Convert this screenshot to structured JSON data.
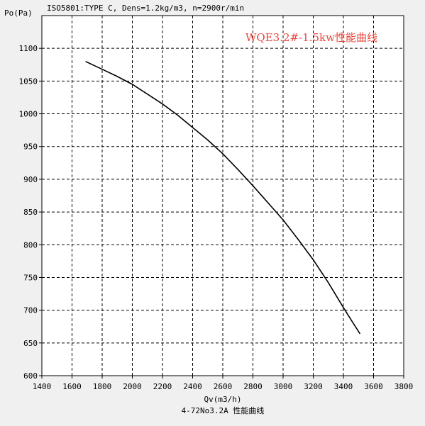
{
  "header": "ISO5801:TYPE C, Dens=1.2kg/m3, n=2900r/min",
  "annotation": "WQE3.2#-1.5kw性能曲线",
  "footer": "4-72No3.2A 性能曲线",
  "chart_data": {
    "type": "line",
    "xlabel": "Qv(m3/h)",
    "ylabel": "Po(Pa)",
    "xlim": [
      1400,
      3800
    ],
    "ylim": [
      600,
      1150
    ],
    "xticks": [
      1400,
      1600,
      1800,
      2000,
      2200,
      2400,
      2600,
      2800,
      3000,
      3200,
      3400,
      3600,
      3800
    ],
    "yticks": [
      600,
      650,
      700,
      750,
      800,
      850,
      900,
      950,
      1000,
      1050,
      1100
    ],
    "grid": true,
    "annotation_color": "#e8463c",
    "series": [
      {
        "x": [
          1690,
          1800,
          1900,
          2000,
          2100,
          2200,
          2300,
          2400,
          2500,
          2600,
          2700,
          2800,
          2900,
          3000,
          3100,
          3200,
          3300,
          3400,
          3460,
          3510
        ],
        "y": [
          1080,
          1068,
          1057,
          1045,
          1030,
          1015,
          998,
          979,
          960,
          939,
          915,
          890,
          864,
          838,
          808,
          777,
          742,
          704,
          682,
          664
        ]
      }
    ]
  }
}
